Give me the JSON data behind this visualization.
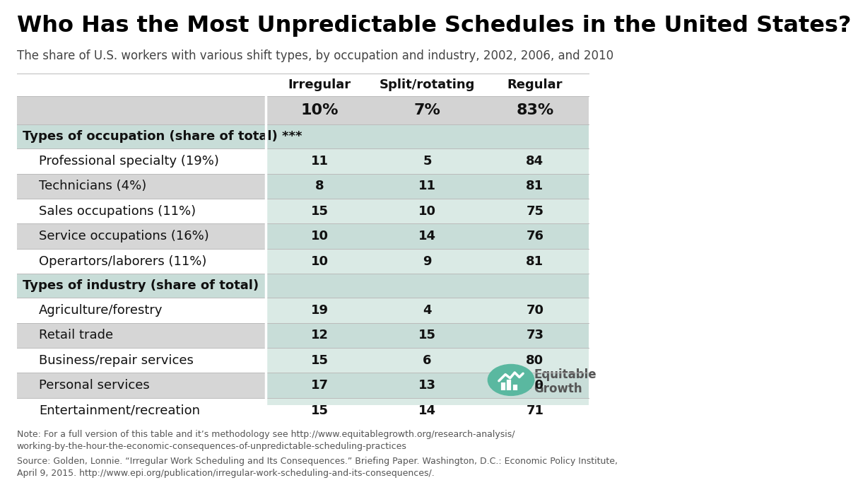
{
  "title": "Who Has the Most Unpredictable Schedules in the United States?",
  "subtitle": "The share of U.S. workers with various shift types, by occupation and industry, 2002, 2006, and 2010",
  "col_headers": [
    "",
    "Irregular",
    "Split/rotating",
    "Regular"
  ],
  "overall_row": [
    "",
    "10%",
    "7%",
    "83%"
  ],
  "section1_header": "Types of occupation (share of total) ***",
  "section1_rows": [
    [
      "Professional specialty (19%)",
      "11",
      "5",
      "84"
    ],
    [
      "Technicians (4%)",
      "8",
      "11",
      "81"
    ],
    [
      "Sales occupations (11%)",
      "15",
      "10",
      "75"
    ],
    [
      "Service occupations (16%)",
      "10",
      "14",
      "76"
    ],
    [
      "Operartors/laborers (11%)",
      "10",
      "9",
      "81"
    ]
  ],
  "section2_header": "Types of industry (share of total)",
  "section2_rows": [
    [
      "Agriculture/forestry",
      "19",
      "4",
      "70"
    ],
    [
      "Retail trade",
      "12",
      "15",
      "73"
    ],
    [
      "Business/repair services",
      "15",
      "6",
      "80"
    ],
    [
      "Personal services",
      "17",
      "13",
      "70"
    ],
    [
      "Entertainment/recreation",
      "15",
      "14",
      "71"
    ]
  ],
  "note": "Note: For a full version of this table and it’s methodology see http://www.equitablegrowth.org/research-analysis/\nworking-by-the-hour-the-economic-consequences-of-unpredictable-scheduling-practices",
  "source": "Source: Golden, Lonnie. “Irregular Work Scheduling and Its Consequences.” Briefing Paper. Washington, D.C.: Economic Policy Institute,\nApril 9, 2015. http://www.epi.org/publication/irregular-work-scheduling-and-its-consequences/.",
  "bg_color": "#ffffff",
  "col1_gray": "#d3d3d3",
  "col1_gray_alt": "#c8c8c8",
  "data_col_green": "#c8ddd5",
  "data_col_green_alt": "#daeae4",
  "section_header_col1": "#c8ddd5",
  "section_header_data": "#c8ddd5",
  "overall_col1": "#d3d3d3",
  "overall_data": "#d3d3d3",
  "white": "#ffffff",
  "title_color": "#000000",
  "subtitle_color": "#444444",
  "data_bold_color": "#333333",
  "note_color": "#555555",
  "teal_color": "#5ab8a0",
  "col_header_fontsize": 13,
  "data_fontsize": 13,
  "section_fontsize": 13,
  "title_fontsize": 23,
  "subtitle_fontsize": 12,
  "note_fontsize": 9,
  "col_split": 0.435
}
